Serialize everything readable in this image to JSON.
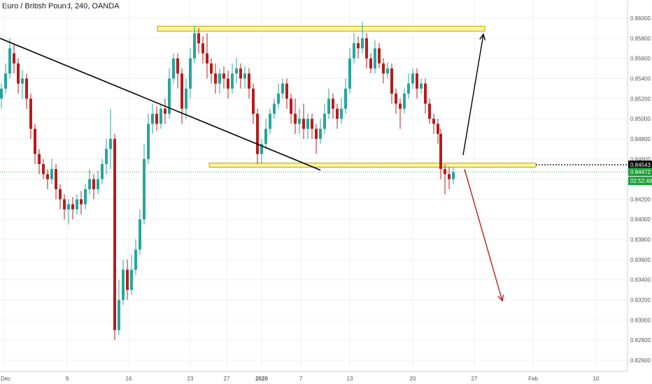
{
  "header": {
    "title": "Euro / British Pound, 240, OANDA"
  },
  "chart_data": {
    "type": "candlestick",
    "symbol": "Euro / British Pound",
    "interval": "240",
    "source": "OANDA",
    "ylim": [
      0.8252,
      0.8612
    ],
    "y_ticks": [
      "0.86000",
      "0.85800",
      "0.85600",
      "0.85400",
      "0.85200",
      "0.85000",
      "0.84800",
      "0.84600",
      "0.84400",
      "0.84200",
      "0.84000",
      "0.83800",
      "0.83600",
      "0.83400",
      "0.83200",
      "0.83000",
      "0.82800",
      "0.82600"
    ],
    "x_ticks": [
      "Dec",
      "9",
      "16",
      "23",
      "27",
      "2020",
      "7",
      "13",
      "20",
      "27",
      "Feb",
      "10"
    ],
    "price_tags": [
      {
        "label": "0.84543",
        "value": 0.84543,
        "color": "#000000"
      },
      {
        "label": "0.84472",
        "value": 0.84472,
        "color": "#1e9e3a"
      },
      {
        "label": "02:52:49",
        "value": 0.8438,
        "color": "#1e9e3a"
      }
    ],
    "zones": [
      {
        "name": "resistance-zone",
        "from": 0.8587,
        "to": 0.8592,
        "color": "#fff59a"
      },
      {
        "name": "support-zone",
        "from": 0.8453,
        "to": 0.8456,
        "color": "#fff59a"
      }
    ],
    "trendline": {
      "from": [
        0,
        0.858
      ],
      "to": [
        458,
        0.8449
      ]
    },
    "ohlc_close_path": [
      [
        0,
        0.852
      ],
      [
        8,
        0.8535
      ],
      [
        16,
        0.857
      ],
      [
        24,
        0.855
      ],
      [
        34,
        0.854
      ],
      [
        44,
        0.851
      ],
      [
        52,
        0.847
      ],
      [
        62,
        0.845
      ],
      [
        72,
        0.844
      ],
      [
        82,
        0.8425
      ],
      [
        92,
        0.841
      ],
      [
        100,
        0.8415
      ],
      [
        110,
        0.841
      ],
      [
        120,
        0.843
      ],
      [
        130,
        0.844
      ],
      [
        140,
        0.843
      ],
      [
        150,
        0.846
      ],
      [
        158,
        0.848
      ],
      [
        163,
        0.835
      ],
      [
        165,
        0.828
      ],
      [
        170,
        0.832
      ],
      [
        178,
        0.834
      ],
      [
        186,
        0.833
      ],
      [
        194,
        0.836
      ],
      [
        200,
        0.84
      ],
      [
        206,
        0.846
      ],
      [
        214,
        0.85
      ],
      [
        224,
        0.851
      ],
      [
        234,
        0.85
      ],
      [
        244,
        0.853
      ],
      [
        252,
        0.856
      ],
      [
        260,
        0.854
      ],
      [
        268,
        0.851
      ],
      [
        276,
        0.855
      ],
      [
        280,
        0.858
      ],
      [
        288,
        0.8575
      ],
      [
        298,
        0.856
      ],
      [
        306,
        0.855
      ],
      [
        316,
        0.854
      ],
      [
        326,
        0.8535
      ],
      [
        336,
        0.855
      ],
      [
        346,
        0.854
      ],
      [
        356,
        0.853
      ],
      [
        362,
        0.851
      ],
      [
        368,
        0.848
      ],
      [
        372,
        0.846
      ],
      [
        378,
        0.847
      ],
      [
        386,
        0.85
      ],
      [
        396,
        0.852
      ],
      [
        406,
        0.853
      ],
      [
        414,
        0.851
      ],
      [
        424,
        0.849
      ],
      [
        434,
        0.85
      ],
      [
        444,
        0.849
      ],
      [
        454,
        0.848
      ],
      [
        464,
        0.85
      ],
      [
        472,
        0.852
      ],
      [
        482,
        0.851
      ],
      [
        492,
        0.852
      ],
      [
        500,
        0.855
      ],
      [
        508,
        0.8575
      ],
      [
        516,
        0.858
      ],
      [
        522,
        0.856
      ],
      [
        530,
        0.8555
      ],
      [
        538,
        0.857
      ],
      [
        546,
        0.8555
      ],
      [
        556,
        0.854
      ],
      [
        564,
        0.852
      ],
      [
        572,
        0.8515
      ],
      [
        580,
        0.8525
      ],
      [
        590,
        0.854
      ],
      [
        598,
        0.8535
      ],
      [
        606,
        0.852
      ],
      [
        614,
        0.85
      ],
      [
        622,
        0.8495
      ],
      [
        628,
        0.847
      ],
      [
        632,
        0.8445
      ],
      [
        640,
        0.8442
      ],
      [
        648,
        0.8447
      ]
    ],
    "candles": [
      [
        2,
        0.852,
        0.853,
        0.851,
        0.8535
      ],
      [
        8,
        0.853,
        0.8545,
        0.8525,
        0.8555
      ],
      [
        14,
        0.8545,
        0.857,
        0.854,
        0.858
      ],
      [
        20,
        0.8565,
        0.8555,
        0.8545,
        0.8575
      ],
      [
        26,
        0.8555,
        0.8535,
        0.8525,
        0.856
      ],
      [
        32,
        0.8535,
        0.854,
        0.852,
        0.8548
      ],
      [
        38,
        0.854,
        0.852,
        0.851,
        0.8545
      ],
      [
        44,
        0.852,
        0.849,
        0.848,
        0.8525
      ],
      [
        50,
        0.849,
        0.8465,
        0.8455,
        0.8495
      ],
      [
        56,
        0.8465,
        0.8455,
        0.8445,
        0.847
      ],
      [
        62,
        0.8455,
        0.8445,
        0.844,
        0.846
      ],
      [
        68,
        0.8445,
        0.844,
        0.843,
        0.845
      ],
      [
        74,
        0.844,
        0.845,
        0.8435,
        0.846
      ],
      [
        80,
        0.845,
        0.843,
        0.842,
        0.8455
      ],
      [
        86,
        0.843,
        0.842,
        0.841,
        0.8435
      ],
      [
        92,
        0.842,
        0.841,
        0.84,
        0.8425
      ],
      [
        98,
        0.841,
        0.8415,
        0.8395,
        0.842
      ],
      [
        104,
        0.8415,
        0.841,
        0.84,
        0.8422
      ],
      [
        110,
        0.841,
        0.842,
        0.8405,
        0.8425
      ],
      [
        116,
        0.842,
        0.8415,
        0.8405,
        0.8428
      ],
      [
        122,
        0.8415,
        0.843,
        0.841,
        0.8435
      ],
      [
        128,
        0.843,
        0.844,
        0.8425,
        0.845
      ],
      [
        134,
        0.844,
        0.843,
        0.842,
        0.8445
      ],
      [
        140,
        0.843,
        0.844,
        0.8425,
        0.8448
      ],
      [
        146,
        0.844,
        0.8455,
        0.8435,
        0.846
      ],
      [
        152,
        0.8455,
        0.847,
        0.8445,
        0.848
      ],
      [
        158,
        0.847,
        0.848,
        0.845,
        0.851
      ],
      [
        164,
        0.848,
        0.829,
        0.828,
        0.8485
      ],
      [
        170,
        0.829,
        0.832,
        0.8285,
        0.834
      ],
      [
        176,
        0.832,
        0.835,
        0.8315,
        0.836
      ],
      [
        182,
        0.835,
        0.833,
        0.832,
        0.836
      ],
      [
        188,
        0.833,
        0.835,
        0.8325,
        0.8365
      ],
      [
        194,
        0.835,
        0.837,
        0.8345,
        0.838
      ],
      [
        200,
        0.837,
        0.84,
        0.8365,
        0.841
      ],
      [
        206,
        0.84,
        0.846,
        0.8395,
        0.8475
      ],
      [
        212,
        0.846,
        0.8495,
        0.8455,
        0.8505
      ],
      [
        218,
        0.8495,
        0.8505,
        0.8485,
        0.8515
      ],
      [
        224,
        0.8505,
        0.8495,
        0.8488,
        0.8512
      ],
      [
        230,
        0.8495,
        0.851,
        0.849,
        0.8515
      ],
      [
        236,
        0.851,
        0.8505,
        0.8495,
        0.852
      ],
      [
        242,
        0.8505,
        0.854,
        0.85,
        0.855
      ],
      [
        248,
        0.854,
        0.856,
        0.8535,
        0.8565
      ],
      [
        254,
        0.856,
        0.8545,
        0.853,
        0.8565
      ],
      [
        260,
        0.8545,
        0.851,
        0.8495,
        0.855
      ],
      [
        266,
        0.851,
        0.853,
        0.85,
        0.854
      ],
      [
        272,
        0.853,
        0.856,
        0.852,
        0.857
      ],
      [
        278,
        0.856,
        0.8585,
        0.8555,
        0.8592
      ],
      [
        284,
        0.8585,
        0.8575,
        0.8565,
        0.859
      ],
      [
        290,
        0.8575,
        0.8565,
        0.8555,
        0.8582
      ],
      [
        296,
        0.8565,
        0.8555,
        0.854,
        0.8585
      ],
      [
        302,
        0.8555,
        0.8545,
        0.8535,
        0.856
      ],
      [
        308,
        0.8545,
        0.8535,
        0.8525,
        0.8555
      ],
      [
        314,
        0.8535,
        0.8545,
        0.8525,
        0.855
      ],
      [
        320,
        0.8545,
        0.854,
        0.853,
        0.8552
      ],
      [
        326,
        0.854,
        0.853,
        0.852,
        0.8548
      ],
      [
        332,
        0.853,
        0.8545,
        0.8525,
        0.8555
      ],
      [
        338,
        0.8545,
        0.855,
        0.8535,
        0.856
      ],
      [
        344,
        0.855,
        0.854,
        0.853,
        0.8555
      ],
      [
        350,
        0.854,
        0.8545,
        0.853,
        0.8552
      ],
      [
        356,
        0.8545,
        0.853,
        0.852,
        0.855
      ],
      [
        362,
        0.853,
        0.8505,
        0.8495,
        0.8535
      ],
      [
        368,
        0.8505,
        0.8465,
        0.8455,
        0.851
      ],
      [
        374,
        0.8465,
        0.8475,
        0.8455,
        0.848
      ],
      [
        380,
        0.8475,
        0.849,
        0.847,
        0.85
      ],
      [
        386,
        0.849,
        0.8505,
        0.8485,
        0.851
      ],
      [
        392,
        0.8505,
        0.8515,
        0.85,
        0.852
      ],
      [
        398,
        0.8515,
        0.8525,
        0.851,
        0.8535
      ],
      [
        404,
        0.8525,
        0.8535,
        0.852,
        0.854
      ],
      [
        410,
        0.8535,
        0.852,
        0.851,
        0.854
      ],
      [
        416,
        0.852,
        0.8505,
        0.8495,
        0.8525
      ],
      [
        422,
        0.8505,
        0.8495,
        0.8485,
        0.852
      ],
      [
        428,
        0.8495,
        0.85,
        0.8485,
        0.851
      ],
      [
        434,
        0.85,
        0.849,
        0.848,
        0.8515
      ],
      [
        440,
        0.849,
        0.85,
        0.848,
        0.8505
      ],
      [
        446,
        0.85,
        0.849,
        0.848,
        0.8505
      ],
      [
        452,
        0.849,
        0.848,
        0.8465,
        0.8495
      ],
      [
        458,
        0.848,
        0.849,
        0.8475,
        0.85
      ],
      [
        464,
        0.849,
        0.8505,
        0.8485,
        0.8515
      ],
      [
        470,
        0.8505,
        0.852,
        0.85,
        0.853
      ],
      [
        476,
        0.852,
        0.851,
        0.85,
        0.8525
      ],
      [
        482,
        0.851,
        0.85,
        0.849,
        0.8515
      ],
      [
        488,
        0.85,
        0.851,
        0.8495,
        0.852
      ],
      [
        494,
        0.851,
        0.853,
        0.8505,
        0.854
      ],
      [
        500,
        0.853,
        0.856,
        0.8525,
        0.857
      ],
      [
        506,
        0.856,
        0.8575,
        0.8555,
        0.8585
      ],
      [
        512,
        0.8575,
        0.857,
        0.856,
        0.8582
      ],
      [
        518,
        0.857,
        0.858,
        0.8565,
        0.8596
      ],
      [
        524,
        0.858,
        0.856,
        0.855,
        0.8585
      ],
      [
        530,
        0.856,
        0.855,
        0.8545,
        0.8565
      ],
      [
        536,
        0.855,
        0.857,
        0.8545,
        0.8578
      ],
      [
        542,
        0.857,
        0.8555,
        0.855,
        0.8575
      ],
      [
        548,
        0.8555,
        0.8545,
        0.8535,
        0.856
      ],
      [
        554,
        0.8545,
        0.855,
        0.854,
        0.8556
      ],
      [
        560,
        0.855,
        0.8525,
        0.8515,
        0.8555
      ],
      [
        566,
        0.8525,
        0.8515,
        0.8505,
        0.853
      ],
      [
        572,
        0.8515,
        0.851,
        0.849,
        0.852
      ],
      [
        578,
        0.851,
        0.8525,
        0.8505,
        0.853
      ],
      [
        584,
        0.8525,
        0.8535,
        0.852,
        0.8545
      ],
      [
        590,
        0.8535,
        0.8545,
        0.853,
        0.855
      ],
      [
        596,
        0.8545,
        0.853,
        0.852,
        0.855
      ],
      [
        602,
        0.853,
        0.8535,
        0.8525,
        0.854
      ],
      [
        608,
        0.8535,
        0.8515,
        0.8505,
        0.854
      ],
      [
        614,
        0.8515,
        0.85,
        0.8495,
        0.852
      ],
      [
        620,
        0.85,
        0.8495,
        0.8485,
        0.8505
      ],
      [
        626,
        0.8495,
        0.8485,
        0.8475,
        0.85
      ],
      [
        630,
        0.8485,
        0.845,
        0.844,
        0.849
      ],
      [
        636,
        0.845,
        0.8445,
        0.8425,
        0.8455
      ],
      [
        642,
        0.8445,
        0.844,
        0.843,
        0.8452
      ],
      [
        648,
        0.844,
        0.8447,
        0.8435,
        0.8452
      ]
    ],
    "arrows": [
      {
        "name": "bullish-projection-arrow",
        "from": [
          662,
          0.8464
        ],
        "to": [
          691,
          0.8584
        ],
        "color": "#000000"
      },
      {
        "name": "bearish-projection-arrow",
        "from": [
          664,
          0.845
        ],
        "to": [
          718,
          0.8319
        ],
        "color": "#b22222"
      }
    ]
  },
  "colors": {
    "up": "#26a69a",
    "down": "#b71c1c",
    "grid": "#eef0f3",
    "axis_text": "#555555",
    "zone": "#fff59a",
    "zone_border": "#b5a900"
  }
}
